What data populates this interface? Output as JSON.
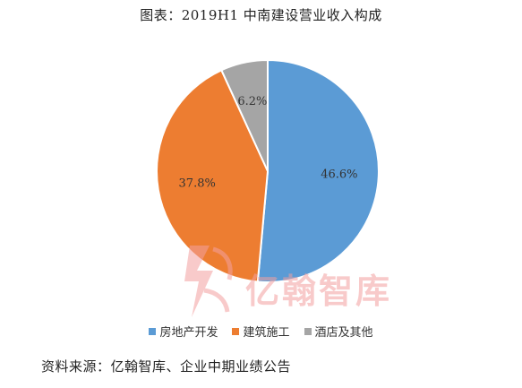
{
  "title": "图表：2019H1 中南建设营业收入构成",
  "source": "资料来源：亿翰智库、企业中期业绩公告",
  "watermark": {
    "text": "亿翰智库",
    "color": "#f3a0a0"
  },
  "chart_data": {
    "type": "pie",
    "title": "图表：2019H1 中南建设营业收入构成",
    "slices": [
      {
        "name": "房地产开发",
        "value": 46.6,
        "label": "46.6%",
        "color": "#5b9bd5"
      },
      {
        "name": "建筑施工",
        "value": 37.8,
        "label": "37.8%",
        "color": "#ed7d31"
      },
      {
        "name": "酒店及其他",
        "value": 6.2,
        "label": "6.2%",
        "color": "#a5a5a5"
      }
    ],
    "start": "12 o'clock",
    "direction": "clockwise",
    "legend_position": "bottom"
  }
}
